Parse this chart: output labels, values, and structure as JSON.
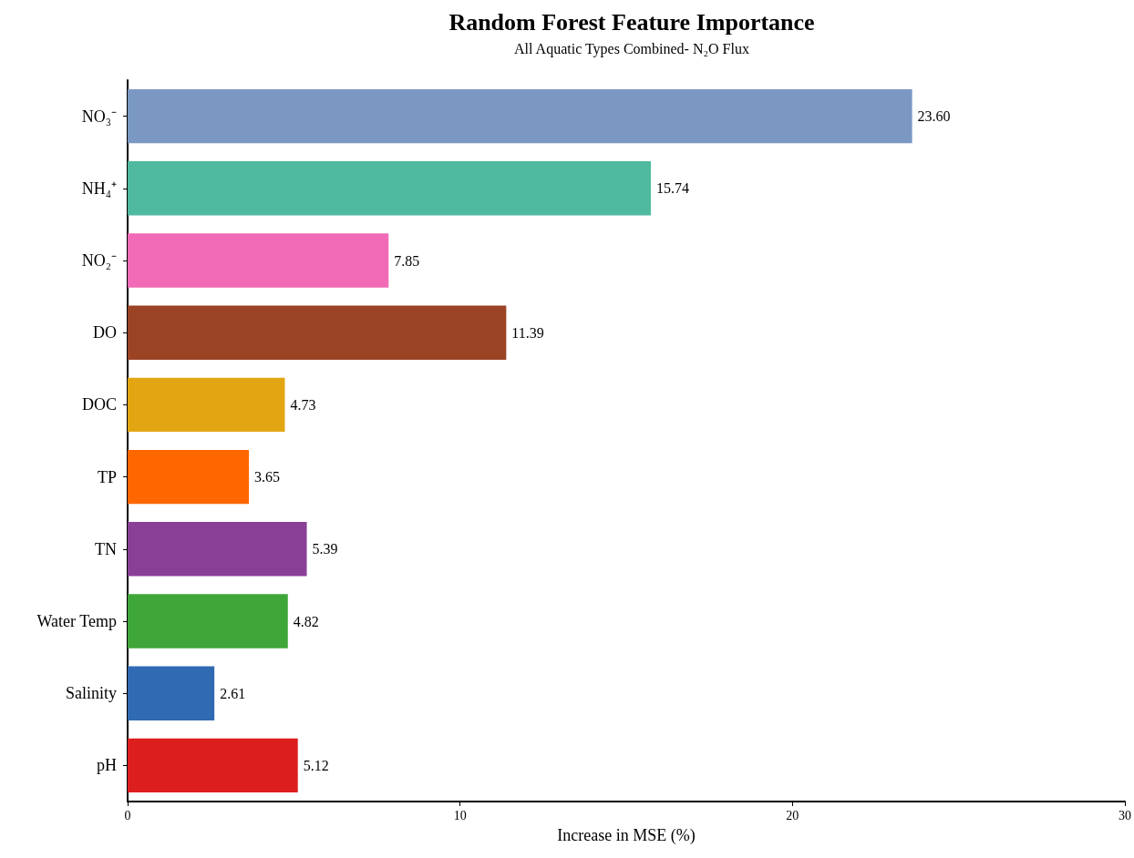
{
  "chart_data": {
    "type": "bar",
    "orientation": "horizontal",
    "title": "Random Forest Feature Importance",
    "subtitle": "All Aquatic Types Combined- N₂O Flux",
    "xlabel": "Increase in MSE (%)",
    "categories": [
      "NO₃⁻",
      "NH₄⁺",
      "NO₂⁻",
      "DO",
      "DOC",
      "TP",
      "TN",
      "Water Temp",
      "Salinity",
      "pH"
    ],
    "values": [
      23.6,
      15.74,
      7.85,
      11.39,
      4.73,
      3.65,
      5.39,
      4.82,
      2.61,
      5.12
    ],
    "value_labels": [
      "23.60",
      "15.74",
      "7.85",
      "11.39",
      "4.73",
      "3.65",
      "5.39",
      "4.82",
      "2.61",
      "5.12"
    ],
    "colors": [
      "#7b98c3",
      "#4fba9f",
      "#f06ab5",
      "#9b4325",
      "#e3a613",
      "#ff6600",
      "#8a3f96",
      "#3fa63a",
      "#2f6ab2",
      "#dc1e1f"
    ],
    "xlim": [
      0,
      30
    ],
    "xticks": [
      0,
      10,
      20,
      30
    ],
    "grid": false
  }
}
